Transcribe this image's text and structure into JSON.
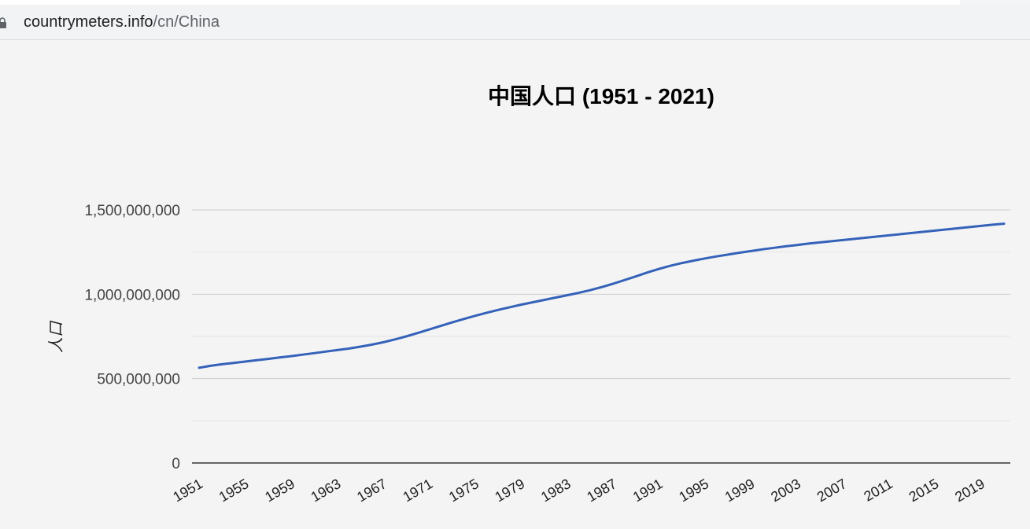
{
  "browser": {
    "url_host": "countrymeters.info",
    "url_path": "/cn/China"
  },
  "colors": {
    "line": "#3562b9",
    "grid_major": "#cccccc",
    "grid_minor": "#e3e3e3",
    "axis": "#333333",
    "background": "#f4f4f5"
  },
  "chart_data": {
    "type": "line",
    "title": "中国人口 (1951 - 2021)",
    "xlabel": "",
    "ylabel": "人口",
    "xlim": [
      1951,
      2021
    ],
    "ylim": [
      0,
      1500000000
    ],
    "x_ticks": [
      1951,
      1955,
      1959,
      1963,
      1967,
      1971,
      1975,
      1979,
      1983,
      1987,
      1991,
      1995,
      1999,
      2003,
      2007,
      2011,
      2015,
      2019
    ],
    "y_ticks": [
      0,
      500000000,
      1000000000,
      1500000000
    ],
    "y_tick_labels": [
      "0",
      "500,000,000",
      "1,000,000,000",
      "1,500,000,000"
    ],
    "grid": true,
    "legend": "none",
    "series": [
      {
        "x": [
          1951,
          1952,
          1953,
          1954,
          1955,
          1956,
          1957,
          1958,
          1959,
          1960,
          1961,
          1962,
          1963,
          1964,
          1965,
          1966,
          1967,
          1968,
          1969,
          1970,
          1971,
          1972,
          1973,
          1974,
          1975,
          1976,
          1977,
          1978,
          1979,
          1980,
          1981,
          1982,
          1983,
          1984,
          1985,
          1986,
          1987,
          1988,
          1989,
          1990,
          1991,
          1992,
          1993,
          1994,
          1995,
          1996,
          1997,
          1998,
          1999,
          2000,
          2001,
          2002,
          2003,
          2004,
          2005,
          2006,
          2007,
          2008,
          2009,
          2010,
          2011,
          2012,
          2013,
          2014,
          2015,
          2016,
          2017,
          2018,
          2019,
          2020,
          2021
        ],
        "values": [
          564000000,
          576000000,
          585000000,
          593000000,
          601000000,
          609000000,
          617000000,
          625000000,
          633000000,
          642000000,
          651000000,
          660000000,
          669000000,
          678000000,
          689000000,
          701000000,
          715000000,
          732000000,
          750000000,
          770000000,
          791000000,
          812000000,
          833000000,
          853000000,
          872000000,
          890000000,
          907000000,
          923000000,
          938000000,
          952000000,
          966000000,
          980000000,
          994000000,
          1008000000,
          1024000000,
          1042000000,
          1062000000,
          1084000000,
          1106000000,
          1129000000,
          1150000000,
          1169000000,
          1185000000,
          1199000000,
          1212000000,
          1224000000,
          1235000000,
          1246000000,
          1256000000,
          1266000000,
          1275000000,
          1284000000,
          1292000000,
          1300000000,
          1307000000,
          1314000000,
          1321000000,
          1328000000,
          1335000000,
          1342000000,
          1349000000,
          1356000000,
          1363000000,
          1370000000,
          1377000000,
          1384000000,
          1391000000,
          1398000000,
          1405000000,
          1412000000,
          1418000000
        ]
      }
    ]
  }
}
